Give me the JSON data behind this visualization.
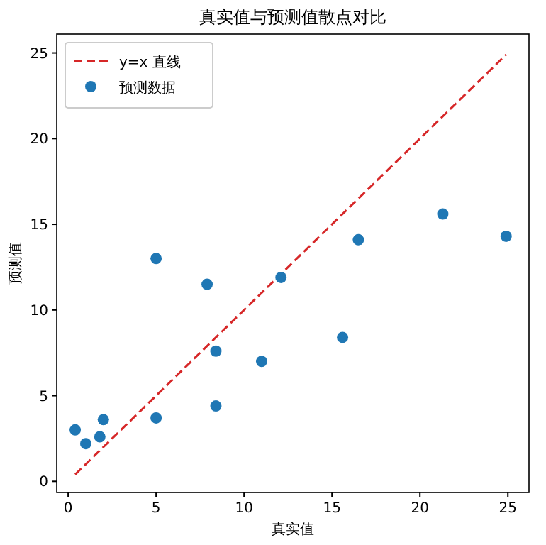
{
  "chart_data": {
    "type": "scatter",
    "title": "真实值与预测值散点对比",
    "xlabel": "真实值",
    "ylabel": "预测值",
    "xlim": [
      -0.65,
      26.2
    ],
    "ylim": [
      -0.65,
      26.1
    ],
    "xticks": [
      0,
      5,
      10,
      15,
      20,
      25
    ],
    "yticks": [
      0,
      5,
      10,
      15,
      20,
      25
    ],
    "grid": false,
    "legend": "top left",
    "series": [
      {
        "name": "y=x 直线",
        "type": "line",
        "color": "#d62728",
        "line_style": "dashed",
        "marker": "none",
        "x": [
          0.4,
          24.9
        ],
        "values": [
          0.4,
          24.9
        ]
      },
      {
        "name": "预测数据",
        "color": "#1f77b4",
        "marker": "circle",
        "x": [
          0.4,
          1.0,
          1.8,
          2.0,
          5.0,
          5.0,
          7.9,
          8.4,
          8.4,
          11.0,
          12.1,
          15.6,
          16.5,
          21.3,
          24.9
        ],
        "values": [
          3.0,
          2.2,
          2.6,
          3.6,
          3.7,
          13.0,
          11.5,
          7.6,
          4.4,
          7.0,
          11.9,
          8.4,
          14.1,
          15.6,
          14.3
        ]
      }
    ]
  }
}
